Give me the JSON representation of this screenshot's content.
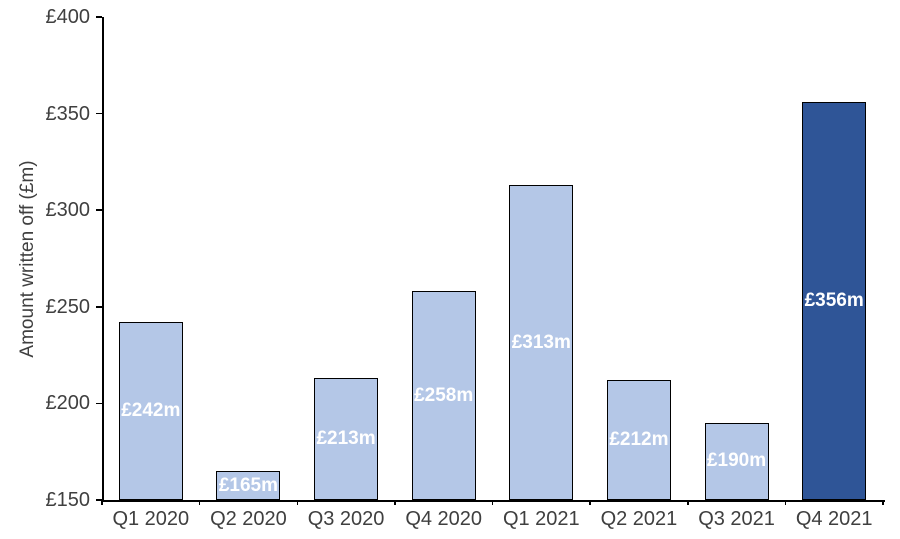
{
  "chart_data": {
    "type": "bar",
    "title": "",
    "xlabel": "",
    "ylabel": "Amount written off (£m)",
    "categories": [
      "Q1 2020",
      "Q2 2020",
      "Q3 2020",
      "Q4 2020",
      "Q1 2021",
      "Q2 2021",
      "Q3 2021",
      "Q4 2021"
    ],
    "values": [
      242,
      165,
      213,
      258,
      313,
      212,
      190,
      356
    ],
    "data_labels": [
      "£242m",
      "£165m",
      "£213m",
      "£258m",
      "£313m",
      "£212m",
      "£190m",
      "£356m"
    ],
    "highlight_index": 7,
    "ylim": [
      150,
      400
    ],
    "yticks": [
      {
        "value": 150,
        "label": "£150"
      },
      {
        "value": 200,
        "label": "£200"
      },
      {
        "value": 250,
        "label": "£250"
      },
      {
        "value": 300,
        "label": "£300"
      },
      {
        "value": 350,
        "label": "£350"
      },
      {
        "value": 400,
        "label": "£400"
      }
    ],
    "grid": false,
    "legend_position": "none",
    "data_label_position": "inside-center"
  },
  "colors": {
    "bar_fill": "#b4c7e7",
    "bar_fill_highlight": "#2f5597",
    "bar_border": "#000000",
    "axis_line": "#000000",
    "tick_text": "#3f3f3f",
    "data_label_text": "#ffffff",
    "background": "#ffffff"
  }
}
